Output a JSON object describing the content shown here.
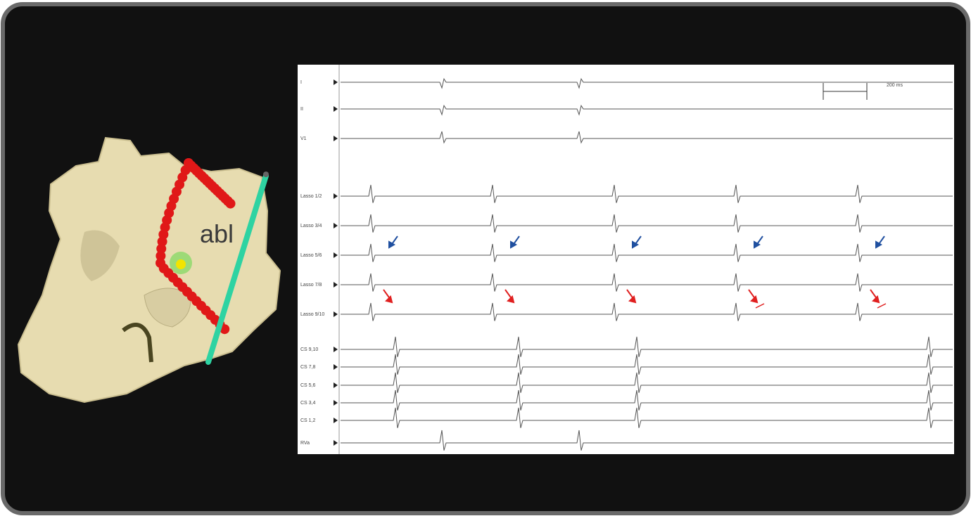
{
  "annotation": "abl",
  "scale_bar": "200 ms",
  "channels": [
    "I",
    "II",
    "V1",
    "Lasso 1/2",
    "Lasso 3/4",
    "Lasso 5/6",
    "Lasso 7/8",
    "Lasso 9/10",
    "CS 9,10",
    "CS 7,8",
    "CS 5,6",
    "CS 3,4",
    "CS 1,2",
    "RVa"
  ]
}
